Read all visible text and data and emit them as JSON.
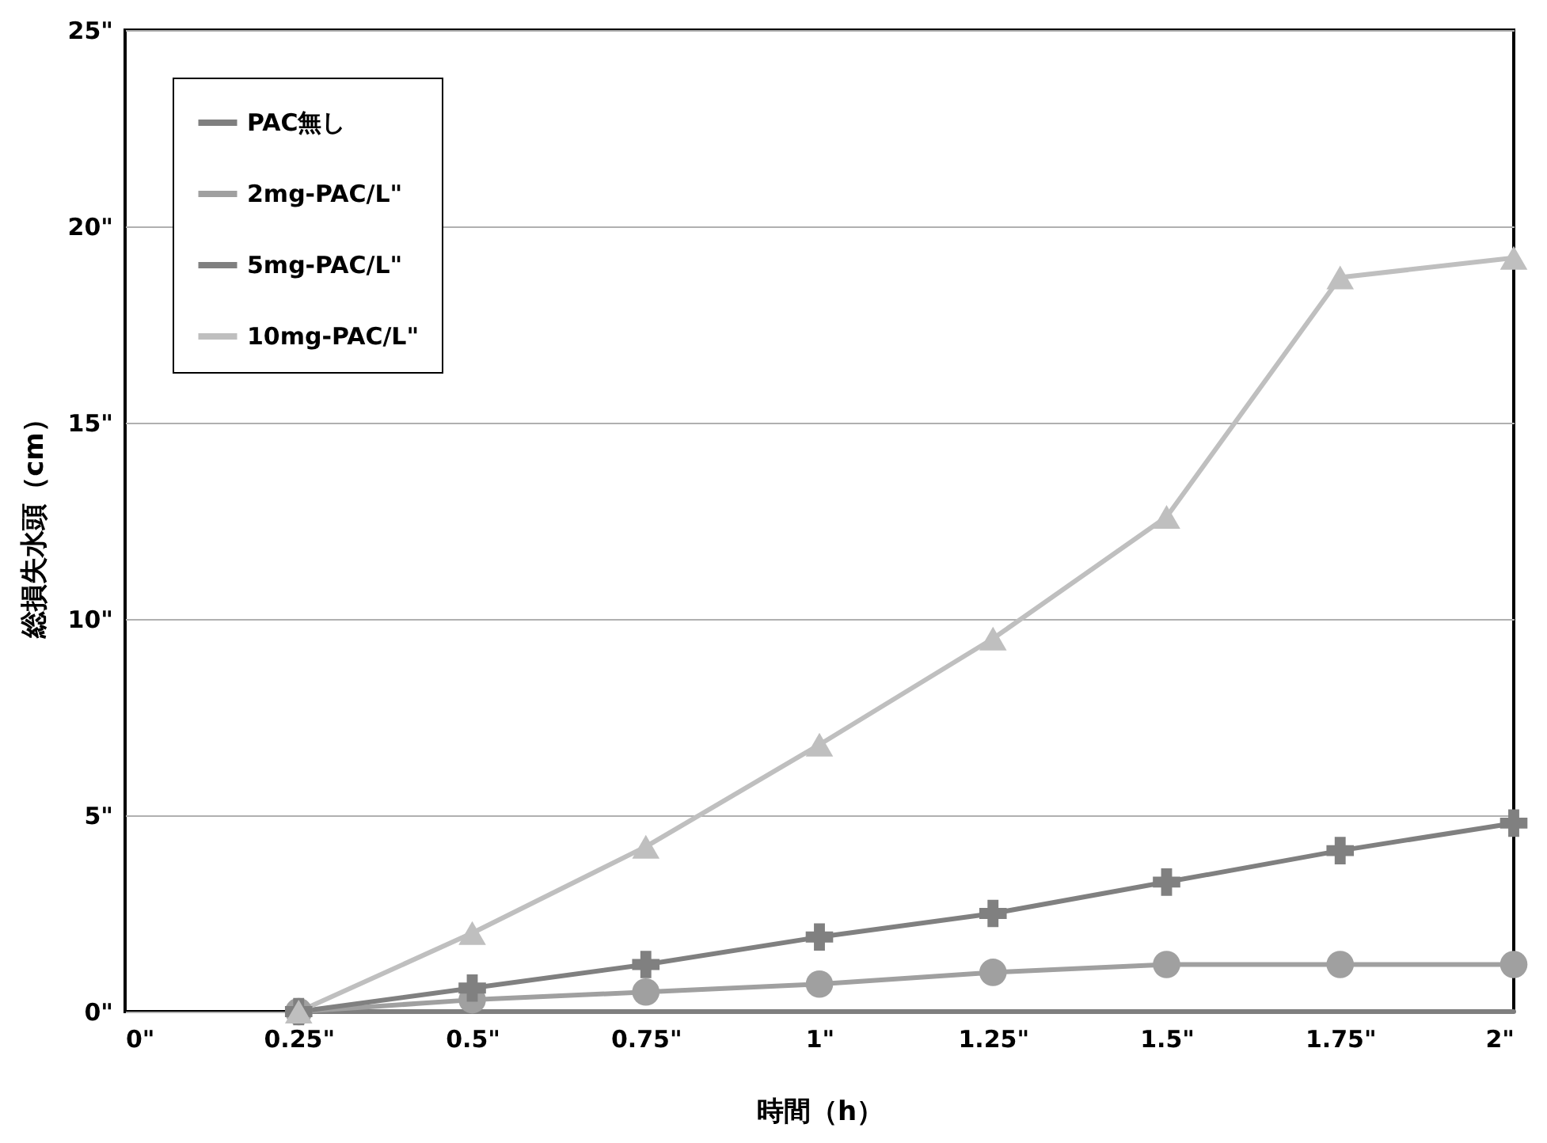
{
  "chart_data": {
    "type": "line",
    "xlabel": "時間（h）",
    "ylabel": "総損失水頭（cm）",
    "x": [
      0.25,
      0.5,
      0.75,
      1,
      1.25,
      1.5,
      1.75,
      2
    ],
    "series": [
      {
        "name": "PAC無し",
        "color": "#7f7f7f",
        "marker": "none",
        "values": [
          0,
          0,
          0,
          0,
          0,
          0,
          0,
          0
        ]
      },
      {
        "name": "2mg-PAC/L\"",
        "color": "#a0a0a0",
        "marker": "circle",
        "values": [
          0,
          0.3,
          0.5,
          0.7,
          1.0,
          1.2,
          1.2,
          1.2
        ]
      },
      {
        "name": "5mg-PAC/L\"",
        "color": "#808080",
        "marker": "cross",
        "values": [
          0,
          0.6,
          1.2,
          1.9,
          2.5,
          3.3,
          4.1,
          4.8
        ]
      },
      {
        "name": "10mg-PAC/L\"",
        "color": "#bfbfbf",
        "marker": "triangle",
        "values": [
          0,
          2.0,
          4.2,
          6.8,
          9.5,
          12.6,
          18.7,
          19.2
        ]
      }
    ],
    "xlim": [
      0,
      2
    ],
    "ylim": [
      0,
      25
    ],
    "xticks": [
      {
        "value": 0,
        "label": "0\""
      },
      {
        "value": 0.25,
        "label": "0.25\""
      },
      {
        "value": 0.5,
        "label": "0.5\""
      },
      {
        "value": 0.75,
        "label": "0.75\""
      },
      {
        "value": 1,
        "label": "1\""
      },
      {
        "value": 1.25,
        "label": "1.25\""
      },
      {
        "value": 1.5,
        "label": "1.5\""
      },
      {
        "value": 1.75,
        "label": "1.75\""
      },
      {
        "value": 2,
        "label": "2\""
      }
    ],
    "yticks": [
      {
        "value": 0,
        "label": "0\""
      },
      {
        "value": 5,
        "label": "5\""
      },
      {
        "value": 10,
        "label": "10\""
      },
      {
        "value": 15,
        "label": "15\""
      },
      {
        "value": 20,
        "label": "20\""
      },
      {
        "value": 25,
        "label": "25\""
      }
    ],
    "grid": "y",
    "legend": "top left",
    "line_style": "solid"
  }
}
